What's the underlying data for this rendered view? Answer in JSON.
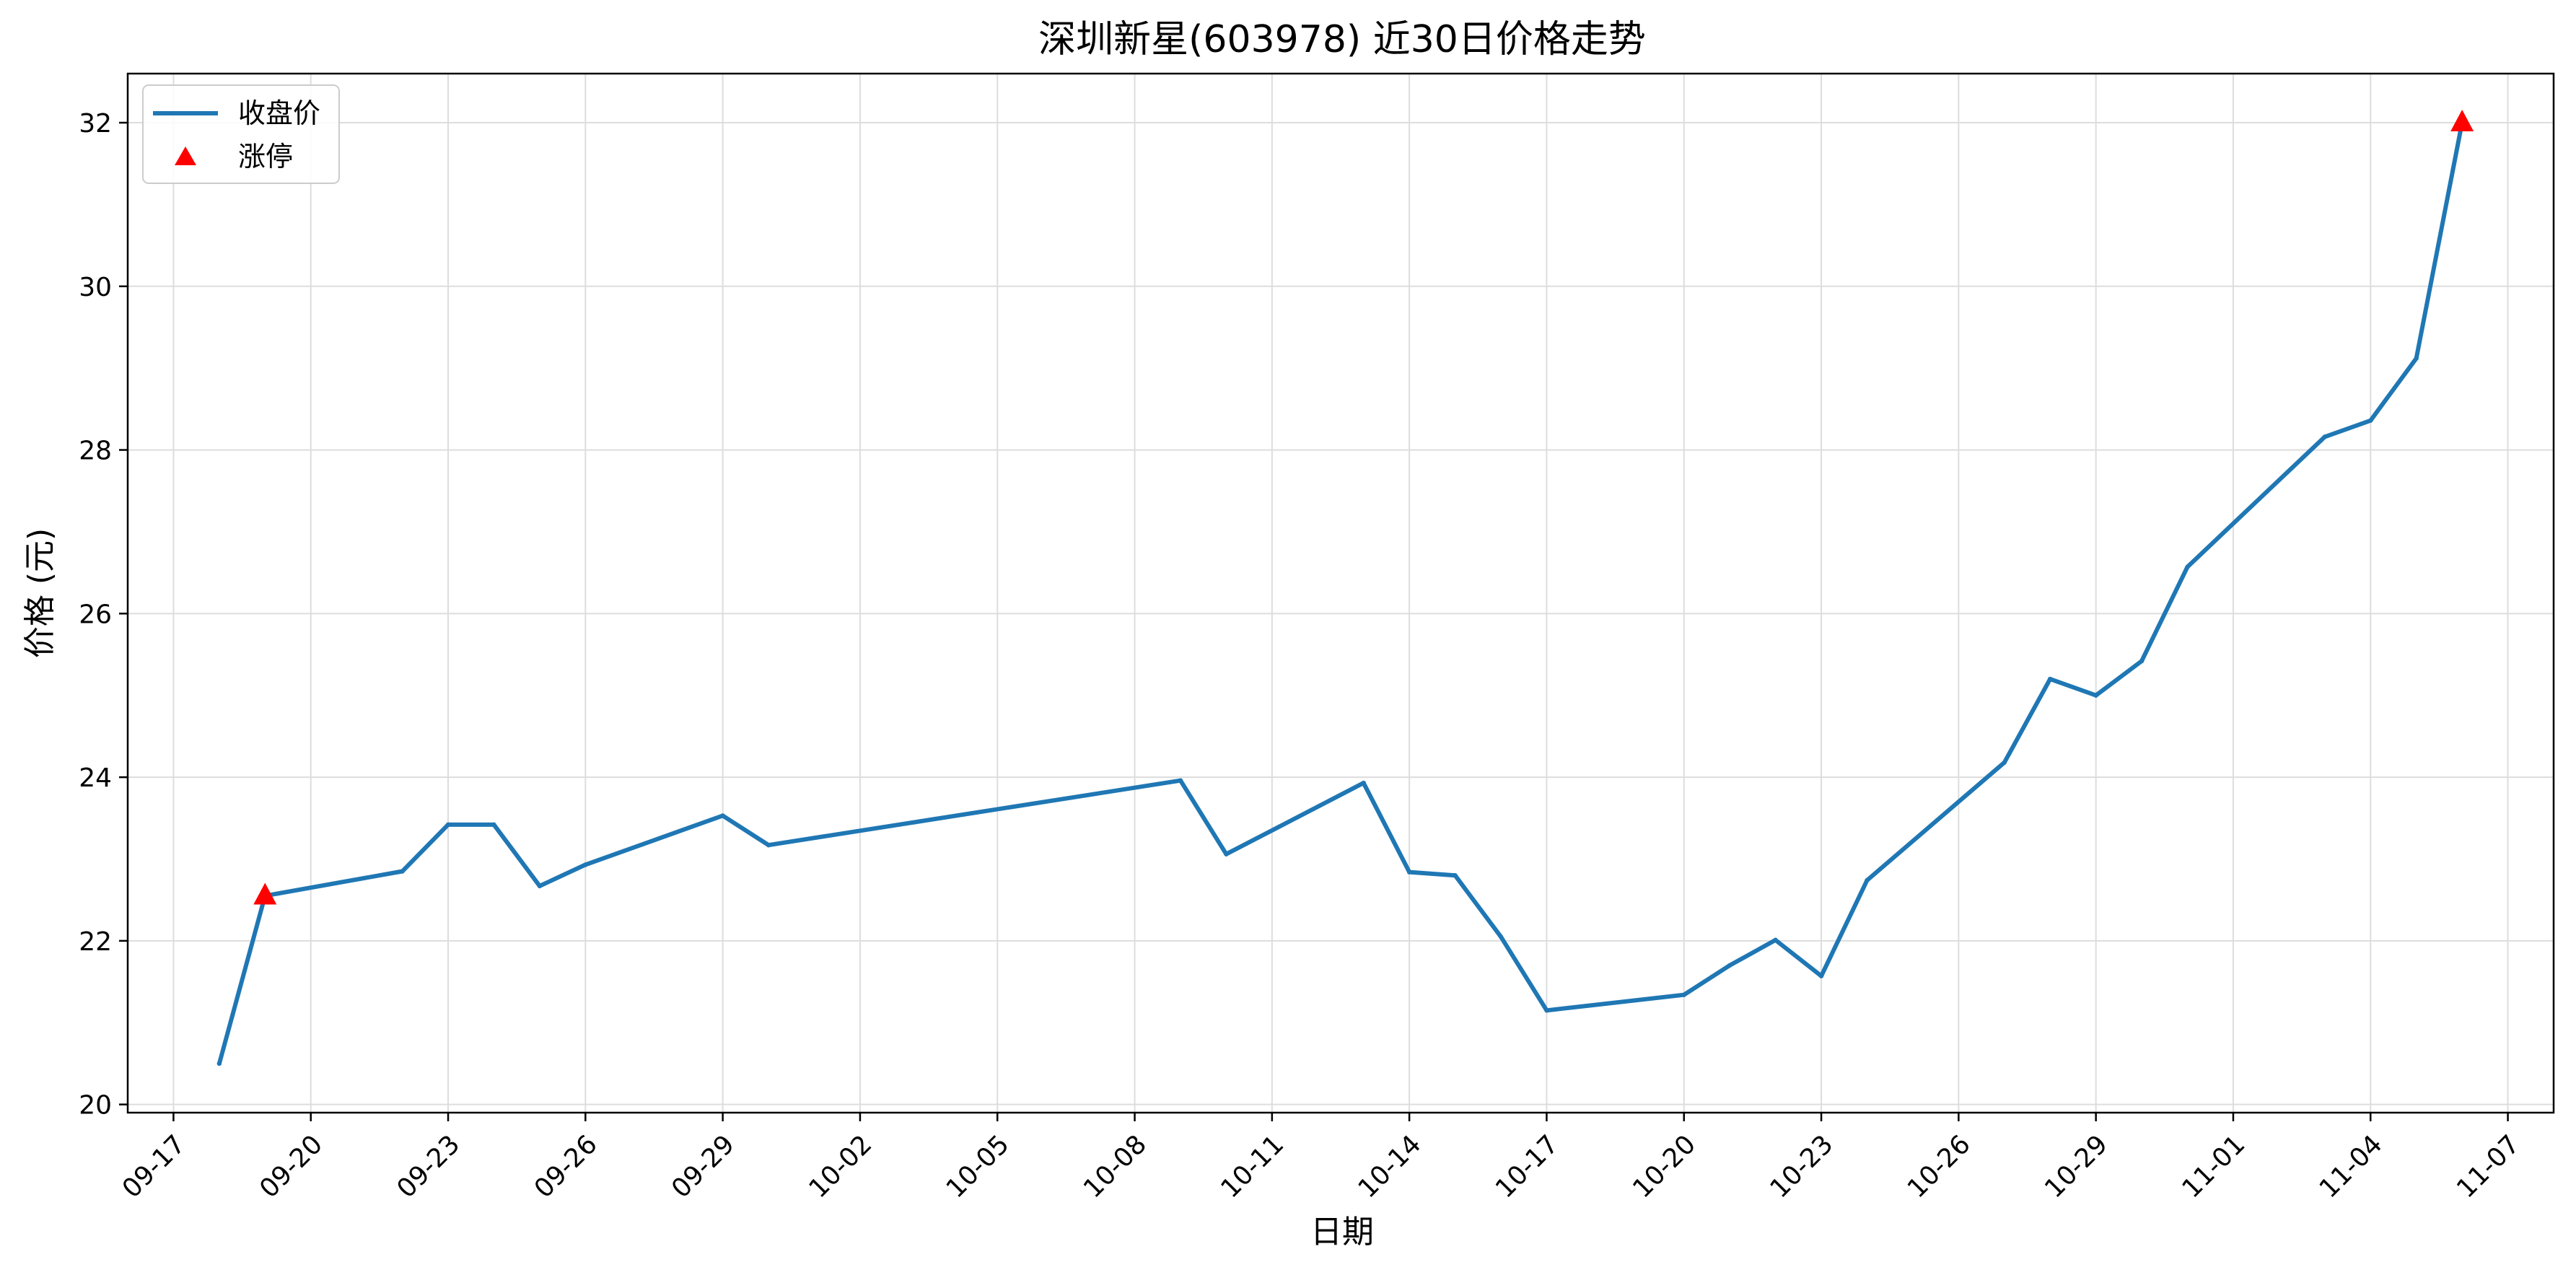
{
  "chart_data": {
    "type": "line",
    "title": "深圳新星(603978) 近30日价格走势",
    "xlabel": "日期",
    "ylabel": "价格 (元)",
    "x_tick_labels": [
      "09-17",
      "09-20",
      "09-23",
      "09-26",
      "09-29",
      "10-02",
      "10-05",
      "10-08",
      "10-11",
      "10-14",
      "10-17",
      "10-20",
      "10-23",
      "10-26",
      "10-29",
      "11-01",
      "11-04",
      "11-07"
    ],
    "y_tick_labels": [
      "20",
      "22",
      "24",
      "26",
      "28",
      "30",
      "32"
    ],
    "xlim": [
      "09-16",
      "11-08"
    ],
    "ylim": [
      19.9,
      32.6
    ],
    "grid": true,
    "legend_position": "top-left",
    "series": [
      {
        "name": "收盘价",
        "color": "#1f77b4",
        "x": [
          "09-18",
          "09-19",
          "09-22",
          "09-23",
          "09-24",
          "09-25",
          "09-26",
          "09-29",
          "09-30",
          "10-09",
          "10-10",
          "10-13",
          "10-14",
          "10-15",
          "10-16",
          "10-17",
          "10-20",
          "10-21",
          "10-22",
          "10-23",
          "10-24",
          "10-27",
          "10-28",
          "10-29",
          "10-30",
          "10-31",
          "11-03",
          "11-04",
          "11-05",
          "11-06"
        ],
        "values": [
          20.5,
          22.55,
          22.85,
          23.42,
          23.42,
          22.67,
          22.93,
          23.53,
          23.17,
          23.96,
          23.06,
          23.93,
          22.84,
          22.8,
          22.05,
          21.15,
          21.34,
          21.7,
          22.01,
          21.57,
          22.74,
          24.18,
          25.2,
          25,
          25.42,
          26.57,
          28.16,
          28.36,
          29.12,
          32
        ]
      },
      {
        "name": "涨停",
        "color": "#ff0000",
        "marker": "triangle",
        "x": [
          "09-19",
          "11-06"
        ],
        "values": [
          22.55,
          32
        ]
      }
    ]
  }
}
